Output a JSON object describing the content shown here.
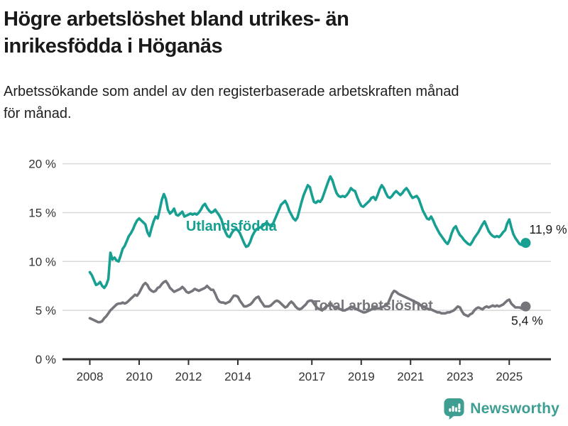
{
  "header": {
    "title_lines": [
      "Högre arbetslöshet bland utrikes- än",
      "inrikesfödda i Höganäs"
    ],
    "subtitle_lines": [
      "Arbetssökande som andel av den registerbaserade arbetskraften månad",
      "för månad."
    ]
  },
  "footer": {
    "brand": "Newsworthy",
    "brand_color": "#3f9e92"
  },
  "chart_data": {
    "type": "line",
    "title": "Högre arbetslöshet bland utrikes- än inrikesfödda i Höganäs",
    "subtitle": "Arbetssökande som andel av den registerbaserade arbetskraften månad för månad.",
    "x_start_year": 2008,
    "x_step": "monthly",
    "x_end": "2025-09",
    "ylim": [
      0,
      20
    ],
    "grid": "horizontal",
    "legend_position": "inline-labels",
    "y_ticks": [
      {
        "value": 20,
        "label": "20 %"
      },
      {
        "value": 15,
        "label": "15 %"
      },
      {
        "value": 10,
        "label": "10 %"
      },
      {
        "value": 5,
        "label": "5 %"
      },
      {
        "value": 0,
        "label": "0 %"
      }
    ],
    "x_ticks": [
      {
        "year": 2008,
        "label": "2008"
      },
      {
        "year": 2010,
        "label": "2010"
      },
      {
        "year": 2012,
        "label": "2012"
      },
      {
        "year": 2014,
        "label": "2014"
      },
      {
        "year": 2017,
        "label": "2017"
      },
      {
        "year": 2019,
        "label": "2019"
      },
      {
        "year": 2021,
        "label": "2021"
      },
      {
        "year": 2023,
        "label": "2023"
      },
      {
        "year": 2025,
        "label": "2025"
      }
    ],
    "series": [
      {
        "name": "Utlandsfödda",
        "color": "#17a092",
        "end_label": "11,9 %",
        "end_value": 11.9,
        "values": [
          8.9,
          8.6,
          8.1,
          7.6,
          7.7,
          7.9,
          7.5,
          7.3,
          7.6,
          8.2,
          10.9,
          10.2,
          10.4,
          10.1,
          10.0,
          10.6,
          11.3,
          11.6,
          12.1,
          12.6,
          12.9,
          13.3,
          13.8,
          14.2,
          14.4,
          14.2,
          14.0,
          13.8,
          13.0,
          12.6,
          13.4,
          14.1,
          14.6,
          14.4,
          15.3,
          16.3,
          16.9,
          16.4,
          15.3,
          14.9,
          15.1,
          15.4,
          14.8,
          14.7,
          14.9,
          15.1,
          14.6,
          14.7,
          14.8,
          14.9,
          14.8,
          14.9,
          14.8,
          15.0,
          15.3,
          15.7,
          15.9,
          15.5,
          15.2,
          15.0,
          15.1,
          15.3,
          15.0,
          14.7,
          14.3,
          13.6,
          13.0,
          12.6,
          12.5,
          12.9,
          13.2,
          13.3,
          13.2,
          12.9,
          12.4,
          11.9,
          11.5,
          11.6,
          12.0,
          12.6,
          13.0,
          13.3,
          13.4,
          13.5,
          13.6,
          13.8,
          14.0,
          13.8,
          13.6,
          13.8,
          14.3,
          14.8,
          15.3,
          15.8,
          16.0,
          16.2,
          15.8,
          15.2,
          14.8,
          14.4,
          14.2,
          14.5,
          15.3,
          16.1,
          16.8,
          17.3,
          17.8,
          17.6,
          16.8,
          16.1,
          16.0,
          16.2,
          16.1,
          16.4,
          17.0,
          17.6,
          18.2,
          18.7,
          18.3,
          17.6,
          17.0,
          16.7,
          16.6,
          16.7,
          16.6,
          16.8,
          17.1,
          17.5,
          17.3,
          17.2,
          16.6,
          16.1,
          15.7,
          15.6,
          15.8,
          16.0,
          16.2,
          16.5,
          16.6,
          16.3,
          16.8,
          17.4,
          17.8,
          17.5,
          17.0,
          16.6,
          16.5,
          16.7,
          17.0,
          17.2,
          17.0,
          16.8,
          17.0,
          17.3,
          17.5,
          17.2,
          16.8,
          16.5,
          16.6,
          16.7,
          16.4,
          15.8,
          15.2,
          14.8,
          14.4,
          14.3,
          14.6,
          14.2,
          13.7,
          13.3,
          12.9,
          12.6,
          12.3,
          12.0,
          11.8,
          12.2,
          12.9,
          13.4,
          13.6,
          13.1,
          12.7,
          12.5,
          12.2,
          12.0,
          11.8,
          11.7,
          12.0,
          12.4,
          12.7,
          13.0,
          13.4,
          13.8,
          14.1,
          13.6,
          13.1,
          12.8,
          12.6,
          12.5,
          12.6,
          12.5,
          12.7,
          13.0,
          13.2,
          13.9,
          14.3,
          13.5,
          12.8,
          12.4,
          12.1,
          11.8,
          11.7,
          11.9,
          11.9
        ]
      },
      {
        "name": "Total arbetslöshet",
        "color": "#75757c",
        "end_label": "5,4 %",
        "end_value": 5.4,
        "values": [
          4.2,
          4.1,
          4.0,
          3.9,
          3.8,
          3.8,
          3.9,
          4.2,
          4.4,
          4.7,
          5.0,
          5.2,
          5.4,
          5.6,
          5.7,
          5.7,
          5.8,
          5.7,
          5.8,
          6.0,
          6.2,
          6.4,
          6.6,
          6.5,
          6.8,
          7.2,
          7.6,
          7.8,
          7.6,
          7.2,
          7.0,
          6.9,
          7.0,
          7.3,
          7.4,
          7.7,
          7.9,
          8.0,
          7.7,
          7.3,
          7.1,
          6.9,
          7.0,
          7.1,
          7.2,
          7.4,
          7.2,
          6.9,
          6.8,
          6.9,
          7.0,
          7.2,
          7.1,
          7.0,
          7.1,
          7.2,
          7.3,
          7.5,
          7.3,
          7.1,
          7.1,
          6.7,
          6.2,
          5.9,
          5.8,
          5.8,
          5.7,
          5.8,
          5.9,
          6.2,
          6.5,
          6.5,
          6.4,
          6.0,
          5.7,
          5.4,
          5.4,
          5.5,
          5.6,
          5.8,
          6.1,
          6.3,
          6.4,
          6.0,
          5.7,
          5.4,
          5.4,
          5.4,
          5.5,
          5.7,
          5.9,
          6.0,
          5.9,
          5.7,
          5.5,
          5.3,
          5.4,
          5.7,
          5.9,
          5.7,
          5.4,
          5.2,
          5.1,
          5.2,
          5.4,
          5.6,
          5.9,
          6.0,
          6.0,
          5.7,
          5.4,
          5.2,
          5.1,
          5.0,
          5.2,
          5.4,
          5.5,
          5.6,
          5.5,
          5.3,
          5.3,
          5.2,
          5.1,
          5.0,
          5.0,
          5.1,
          5.2,
          5.4,
          5.3,
          5.2,
          5.1,
          5.0,
          4.9,
          4.8,
          4.8,
          4.9,
          5.0,
          5.1,
          5.2,
          5.3,
          5.2,
          5.2,
          5.3,
          5.4,
          5.5,
          5.7,
          6.2,
          6.7,
          7.0,
          6.9,
          6.7,
          6.6,
          6.5,
          6.4,
          6.3,
          6.2,
          6.1,
          6.0,
          5.9,
          5.8,
          5.7,
          5.5,
          5.4,
          5.3,
          5.2,
          5.1,
          5.1,
          5.0,
          4.9,
          4.8,
          4.8,
          4.7,
          4.7,
          4.7,
          4.8,
          4.8,
          4.9,
          5.0,
          5.2,
          5.4,
          5.3,
          4.9,
          4.6,
          4.5,
          4.4,
          4.6,
          4.7,
          5.0,
          5.2,
          5.3,
          5.2,
          5.1,
          5.3,
          5.4,
          5.3,
          5.4,
          5.5,
          5.4,
          5.5,
          5.4,
          5.5,
          5.6,
          5.8,
          6.0,
          6.1,
          5.7,
          5.5,
          5.3,
          5.3,
          5.3,
          5.2,
          5.3,
          5.4
        ]
      }
    ],
    "colors": {
      "gridline": "#d8d8d8",
      "axis_line": "#303030",
      "axis_text": "#333333",
      "annotation_text": "#1a1a1a"
    }
  }
}
